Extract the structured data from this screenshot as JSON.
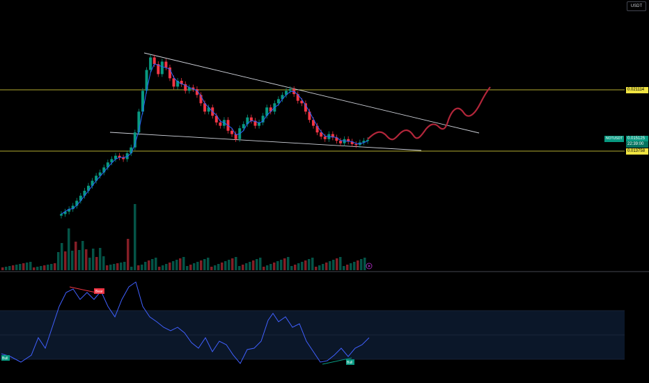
{
  "header": {
    "title_line": "",
    "line2": "",
    "line3": ""
  },
  "toolbar": {
    "currency_label": "USDT"
  },
  "price_tags": {
    "resistance": "0.021114",
    "support": "0.013758",
    "current_price": "0.015125",
    "countdown": "22:39:00",
    "symbol": "NOTUSDT"
  },
  "indicator": {
    "bear_label": "Bear",
    "bull_label_left": "Bull",
    "bull_label_right": "Bull"
  },
  "colors": {
    "up": "#089981",
    "down": "#f23645",
    "ma": "#2962ff",
    "rsi": "#4060ff",
    "level": "#f0e442",
    "trendline": "#d1d4dc",
    "projection": "#b2263a",
    "rsi_band": "#0c1a2e"
  },
  "icons": {
    "replay": "play-icon"
  },
  "chart_data": {
    "type": "candlestick",
    "symbol": "NOTUSDT",
    "price_levels": [
      0.021114,
      0.013758
    ],
    "last_price": 0.015125,
    "series": [
      {
        "name": "price",
        "values": [
          0.0062,
          0.0065,
          0.0068,
          0.0072,
          0.0078,
          0.0084,
          0.009,
          0.0096,
          0.0102,
          0.0108,
          0.0112,
          0.0118,
          0.0124,
          0.0128,
          0.0132,
          0.013,
          0.0128,
          0.0135,
          0.0142,
          0.016,
          0.0185,
          0.021,
          0.0235,
          0.025,
          0.0242,
          0.023,
          0.0245,
          0.0238,
          0.0225,
          0.0215,
          0.0222,
          0.0218,
          0.021,
          0.0214,
          0.0212,
          0.0205,
          0.0195,
          0.0185,
          0.019,
          0.018,
          0.0172,
          0.0168,
          0.0175,
          0.0162,
          0.0158,
          0.0152,
          0.0165,
          0.017,
          0.0178,
          0.0174,
          0.0168,
          0.0172,
          0.018,
          0.019,
          0.0185,
          0.0195,
          0.02,
          0.0205,
          0.021,
          0.0212,
          0.0206,
          0.0198,
          0.0195,
          0.0185,
          0.0175,
          0.0168,
          0.016,
          0.0155,
          0.0152,
          0.0158,
          0.0154,
          0.015,
          0.0147,
          0.0152,
          0.0149,
          0.0146,
          0.0145,
          0.0148,
          0.015,
          0.0151
        ]
      }
    ]
  }
}
